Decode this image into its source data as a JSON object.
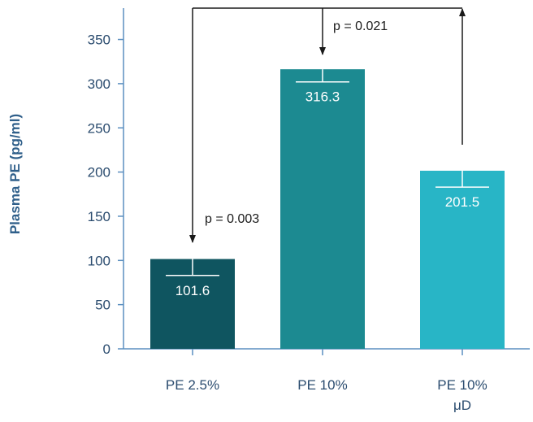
{
  "chart_data": {
    "type": "bar",
    "categories": [
      "PE 2.5%",
      "PE 10%",
      "PE 10%\nμD"
    ],
    "category_lines": [
      [
        "PE 2.5%"
      ],
      [
        "PE 10%"
      ],
      [
        "PE 10%",
        "μD"
      ]
    ],
    "values": [
      101.6,
      316.3,
      201.5
    ],
    "error_lower": [
      83,
      302,
      183
    ],
    "error_upper": [
      101.6,
      316.3,
      201.5
    ],
    "data_labels": [
      "101.6",
      "316.3",
      "201.5"
    ],
    "ylabel": "Plasma PE (pg/ml)",
    "xlabel": "",
    "title": "",
    "ylim": [
      0,
      350
    ],
    "yticks": [
      0,
      50,
      100,
      150,
      200,
      250,
      300,
      350
    ],
    "colors": [
      "#0f5560",
      "#1c8a91",
      "#28b5c6"
    ],
    "axis_color": "#5b8fc0",
    "annotations": [
      {
        "text": "p = 0.003",
        "from": "PE 10%\nμD",
        "to": "PE 2.5%"
      },
      {
        "text": "p = 0.021",
        "from": "PE 10%\nμD",
        "to": "PE 10%"
      }
    ]
  }
}
